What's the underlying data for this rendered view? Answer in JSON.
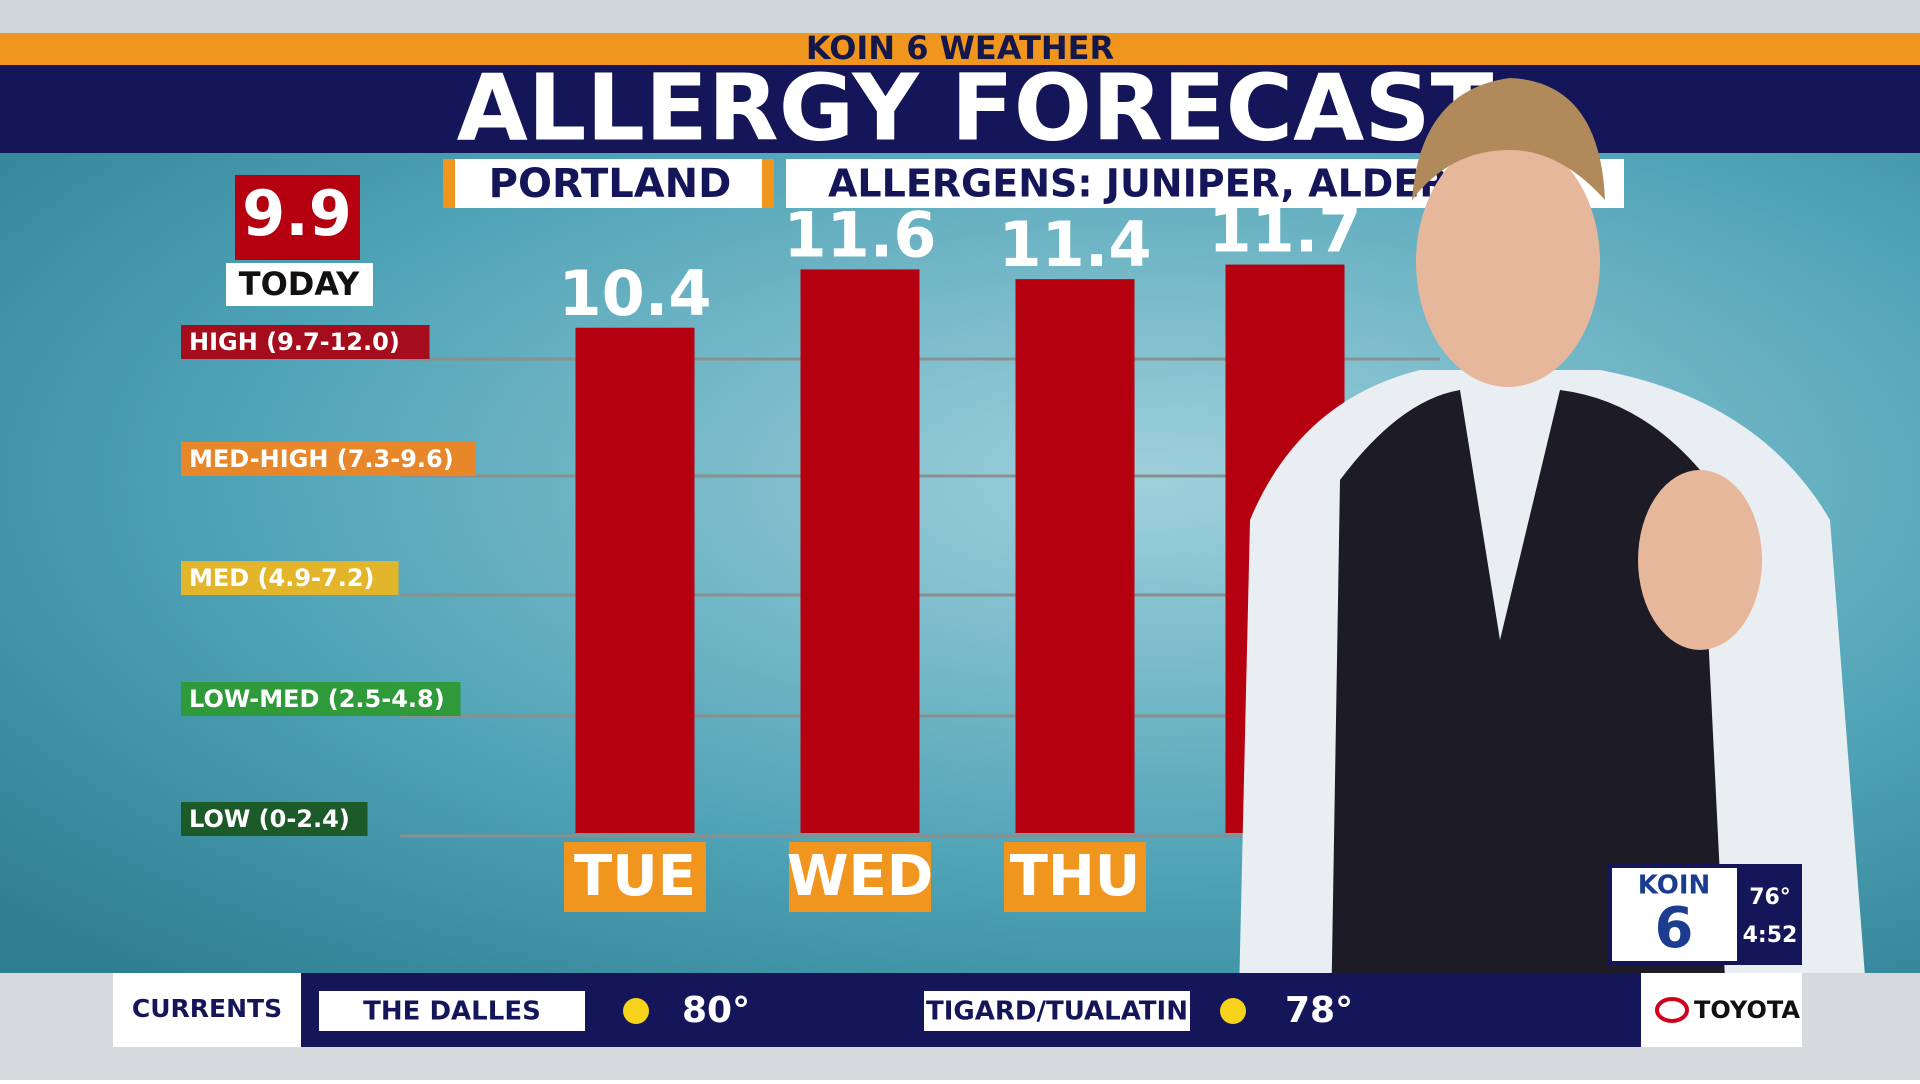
{
  "header": {
    "network": "KOIN 6 WEATHER",
    "title": "ALLERGY FORECAST",
    "location": "PORTLAND",
    "allergens": "ALLERGENS: JUNIPER, ALDER"
  },
  "today": {
    "value": "9.9",
    "label": "TODAY"
  },
  "levels": [
    {
      "label": "HIGH (9.7-12.0)",
      "color": "#a50d1c"
    },
    {
      "label": "MED-HIGH (7.3-9.6)",
      "color": "#e8862a"
    },
    {
      "label": "MED (4.9-7.2)",
      "color": "#e3b52a"
    },
    {
      "label": "LOW-MED (2.5-4.8)",
      "color": "#2e9a3a"
    },
    {
      "label": "LOW (0-2.4)",
      "color": "#1d5a2a"
    }
  ],
  "chart_data": {
    "type": "bar",
    "categories": [
      "TUE",
      "WED",
      "THU",
      null
    ],
    "values": [
      10.4,
      11.6,
      11.4,
      11.7
    ],
    "color": "#b5000f",
    "ylim": [
      0,
      12
    ]
  },
  "ticker": {
    "label": "CURRENTS",
    "items": [
      {
        "place": "THE DALLES",
        "temp": "80°"
      },
      {
        "place": "TIGARD/TUALATIN",
        "temp": "78°"
      }
    ],
    "sponsor": "TOYOTA"
  },
  "logo": {
    "name": "KOIN",
    "channel": "6",
    "temp": "76°",
    "time": "4:52"
  }
}
